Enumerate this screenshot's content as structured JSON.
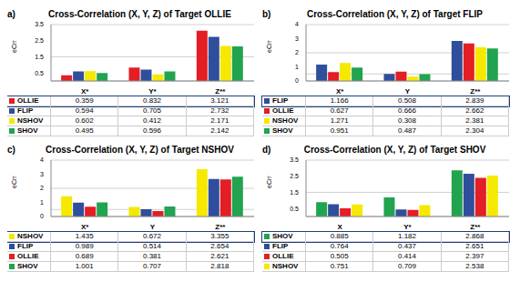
{
  "chart_data": [
    {
      "type": "bar",
      "panel_label": "a)",
      "title": "Cross-Correlation (X, Y, Z) of Target OLLIE",
      "y_label": "eCrr",
      "categories": [
        "X*",
        "Y*",
        "Z**"
      ],
      "series": [
        {
          "name": "OLLIE",
          "color": "#e31e24",
          "values": [
            0.359,
            0.832,
            3.121
          ]
        },
        {
          "name": "FLIP",
          "color": "#2f4f9c",
          "values": [
            0.594,
            0.705,
            2.732
          ]
        },
        {
          "name": "NSHOV",
          "color": "#f5e900",
          "values": [
            0.602,
            0.412,
            2.171
          ]
        },
        {
          "name": "SHOV",
          "color": "#22a350",
          "values": [
            0.495,
            0.596,
            2.142
          ]
        }
      ],
      "ylim": [
        0,
        3.5
      ],
      "yticks": [
        0,
        0.5,
        1,
        1.5,
        2,
        2.5,
        3,
        3.5
      ],
      "grid": true
    },
    {
      "type": "bar",
      "panel_label": "b)",
      "title": "Cross-Correlation (X, Y, Z) of Target FLIP",
      "y_label": "eCrr",
      "categories": [
        "X*",
        "Y",
        "Z**"
      ],
      "series": [
        {
          "name": "FLIP",
          "color": "#2f4f9c",
          "values": [
            1.166,
            0.508,
            2.839
          ]
        },
        {
          "name": "OLLIE",
          "color": "#e31e24",
          "values": [
            0.627,
            0.666,
            2.662
          ]
        },
        {
          "name": "NSHOV",
          "color": "#f5e900",
          "values": [
            1.271,
            0.308,
            2.381
          ]
        },
        {
          "name": "SHOV",
          "color": "#22a350",
          "values": [
            0.951,
            0.487,
            2.304
          ]
        }
      ],
      "ylim": [
        0,
        4
      ],
      "yticks": [
        0,
        0.5,
        1,
        1.5,
        2,
        2.5,
        3,
        3.5,
        4
      ],
      "grid": true
    },
    {
      "type": "bar",
      "panel_label": "c)",
      "title": "Cross-Correlation (X, Y, Z) of Target NSHOV",
      "y_label": "eCrr",
      "categories": [
        "X*",
        "Y",
        "Z**"
      ],
      "series": [
        {
          "name": "NSHOV",
          "color": "#f5e900",
          "values": [
            1.435,
            0.672,
            3.355
          ]
        },
        {
          "name": "FLIP",
          "color": "#2f4f9c",
          "values": [
            0.989,
            0.514,
            2.654
          ]
        },
        {
          "name": "OLLIE",
          "color": "#e31e24",
          "values": [
            0.689,
            0.381,
            2.621
          ]
        },
        {
          "name": "SHOV",
          "color": "#22a350",
          "values": [
            1.001,
            0.707,
            2.818
          ]
        }
      ],
      "ylim": [
        0,
        4
      ],
      "yticks": [
        0,
        0.5,
        1,
        1.5,
        2,
        2.5,
        3,
        3.5,
        4
      ],
      "grid": true
    },
    {
      "type": "bar",
      "panel_label": "d)",
      "title": "Cross-Correlation (X, Y, Z) of Target SHOV",
      "y_label": "eCrr",
      "categories": [
        "X",
        "Y*",
        "Z**"
      ],
      "series": [
        {
          "name": "SHOV",
          "color": "#22a350",
          "values": [
            0.885,
            1.182,
            2.868
          ]
        },
        {
          "name": "FLIP",
          "color": "#2f4f9c",
          "values": [
            0.764,
            0.437,
            2.651
          ]
        },
        {
          "name": "OLLIE",
          "color": "#e31e24",
          "values": [
            0.505,
            0.414,
            2.397
          ]
        },
        {
          "name": "NSHOV",
          "color": "#f5e900",
          "values": [
            0.751,
            0.709,
            2.538
          ]
        }
      ],
      "ylim": [
        0,
        3.5
      ],
      "yticks": [
        0,
        0.5,
        1,
        1.5,
        2,
        2.5,
        3,
        3.5
      ],
      "grid": true
    }
  ]
}
